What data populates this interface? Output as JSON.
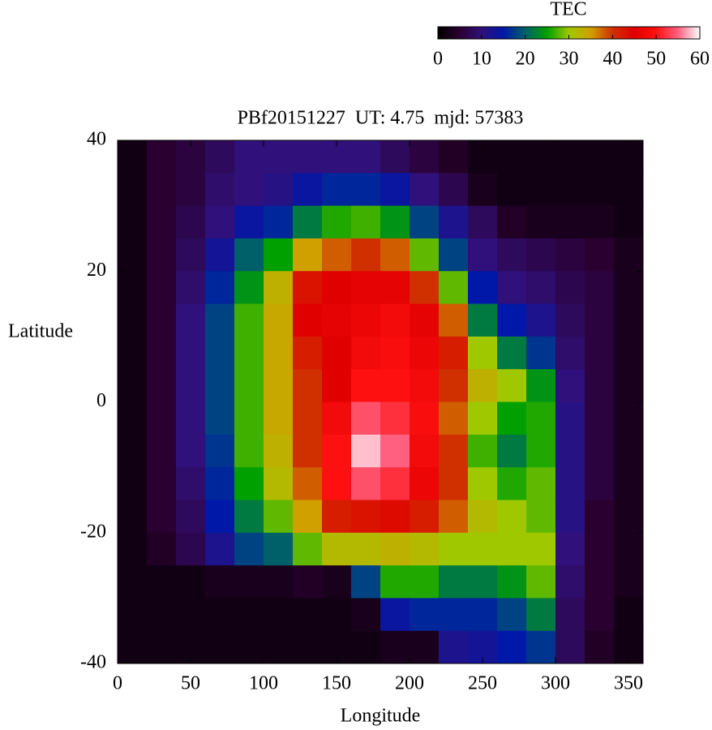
{
  "chart_data": {
    "type": "heatmap",
    "title": "PBf20151227  UT: 4.75  mjd: 57383",
    "x_label": "Longitude",
    "y_label": "Latitude",
    "colorbar_label": "TEC",
    "x": [
      10,
      30,
      50,
      70,
      90,
      110,
      130,
      150,
      170,
      190,
      210,
      230,
      250,
      270,
      290,
      310,
      330,
      350
    ],
    "y": [
      37.5,
      32.5,
      27.5,
      22.5,
      17.5,
      12.5,
      7.5,
      2.5,
      -2.5,
      -7.5,
      -12.5,
      -17.5,
      -22.5,
      -27.5,
      -32.5,
      -37.5
    ],
    "z": [
      [
        2,
        5,
        6,
        8,
        10,
        10,
        10,
        10,
        10,
        8,
        6,
        4,
        2,
        2,
        2,
        2,
        2,
        2
      ],
      [
        2,
        5,
        6,
        9,
        10,
        11,
        14,
        16,
        16,
        14,
        10,
        7,
        3,
        2,
        2,
        2,
        2,
        2
      ],
      [
        2,
        5,
        7,
        10,
        14,
        16,
        22,
        26,
        27,
        24,
        18,
        12,
        8,
        4,
        3,
        3,
        3,
        2
      ],
      [
        2,
        5,
        8,
        13,
        20,
        25,
        35,
        38,
        40,
        38,
        28,
        18,
        10,
        8,
        7,
        6,
        5,
        3
      ],
      [
        2,
        5,
        9,
        16,
        24,
        33,
        43,
        45,
        46,
        46,
        40,
        28,
        15,
        10,
        9,
        7,
        6,
        3
      ],
      [
        2,
        5,
        10,
        18,
        27,
        34,
        45,
        46,
        47,
        48,
        46,
        38,
        22,
        15,
        12,
        8,
        6,
        3
      ],
      [
        2,
        5,
        10,
        18,
        27,
        34,
        42,
        45,
        48,
        49,
        47,
        42,
        30,
        22,
        17,
        9,
        6,
        3
      ],
      [
        2,
        5,
        10,
        18,
        27,
        34,
        40,
        45,
        50,
        50,
        48,
        40,
        33,
        30,
        24,
        10,
        6,
        3
      ],
      [
        2,
        5,
        10,
        18,
        27,
        34,
        40,
        48,
        54,
        52,
        49,
        38,
        30,
        25,
        26,
        11,
        6,
        3
      ],
      [
        2,
        5,
        10,
        17,
        27,
        33,
        40,
        50,
        58,
        55,
        48,
        40,
        27,
        22,
        26,
        11,
        6,
        3
      ],
      [
        2,
        5,
        9,
        16,
        25,
        32,
        38,
        50,
        54,
        52,
        47,
        40,
        30,
        26,
        28,
        11,
        6,
        3
      ],
      [
        2,
        5,
        8,
        15,
        22,
        28,
        35,
        42,
        43,
        44,
        42,
        38,
        32,
        30,
        28,
        11,
        5,
        3
      ],
      [
        2,
        4,
        7,
        12,
        18,
        20,
        28,
        32,
        32,
        33,
        32,
        30,
        30,
        30,
        30,
        10,
        5,
        3
      ],
      [
        2,
        2,
        2,
        3,
        3,
        3,
        4,
        3,
        18,
        26,
        26,
        22,
        22,
        24,
        28,
        9,
        5,
        3
      ],
      [
        2,
        2,
        2,
        2,
        2,
        2,
        2,
        2,
        3,
        14,
        16,
        16,
        16,
        18,
        22,
        8,
        5,
        2
      ],
      [
        2,
        2,
        2,
        2,
        2,
        2,
        2,
        2,
        2,
        3,
        3,
        12,
        13,
        15,
        17,
        8,
        4,
        2
      ]
    ],
    "xlim": [
      0,
      360
    ],
    "ylim": [
      -40,
      40
    ],
    "xticks": [
      0,
      50,
      100,
      150,
      200,
      250,
      300,
      350
    ],
    "yticks": [
      -40,
      -20,
      0,
      20,
      40
    ],
    "clim": [
      0,
      60
    ],
    "cticks": [
      0,
      10,
      20,
      30,
      40,
      50,
      60
    ],
    "colormap": [
      "#000000",
      "#2a0030",
      "#30107a",
      "#0018a8",
      "#00606a",
      "#00a000",
      "#a0c800",
      "#d0a000",
      "#d03000",
      "#e00000",
      "#ff1010",
      "#ff6080",
      "#ffffff"
    ]
  }
}
